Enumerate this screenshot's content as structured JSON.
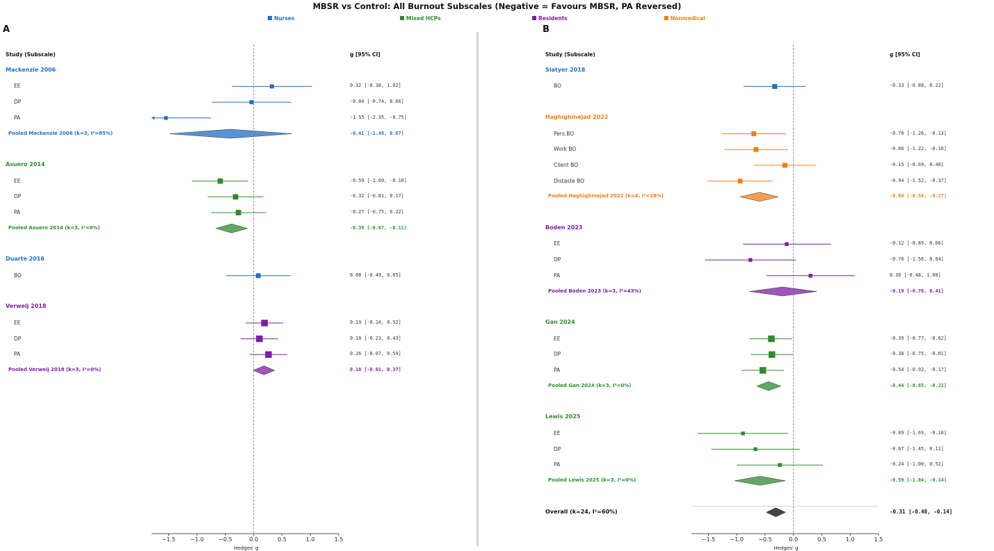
{
  "title": "MBSR vs Control: All Burnout Subscales  (Negative = Favours MBSR, PA Reversed)",
  "legend": [
    {
      "label": "Nurses",
      "color": "#1f6fc5"
    },
    {
      "label": "Mixed HCPs",
      "color": "#2e8b2e"
    },
    {
      "label": "Residents",
      "color": "#7a1fa2"
    },
    {
      "label": "Nonmedical",
      "color": "#f07f12"
    }
  ],
  "column_headers": {
    "study": "Study (Subscale)",
    "effect": "g [95% CI]"
  },
  "x_axis": {
    "label": "Hedges' g",
    "ticks": [
      -1.5,
      -1.0,
      -0.5,
      0.0,
      0.5,
      1.0,
      1.5
    ],
    "tick_labels": [
      "−1.5",
      "−1.0",
      "−0.5",
      "0.0",
      "0.5",
      "1.0",
      "1.5"
    ],
    "xlim": [
      -1.8,
      1.5
    ]
  },
  "chart_data": [
    {
      "type": "forest",
      "panel": "A",
      "studies": [
        {
          "name": "Mackenzie 2006",
          "group": "Nurses",
          "color": "#1f6fc5",
          "rows": [
            {
              "label": "EE",
              "g": 0.32,
              "lo": -0.38,
              "hi": 1.02,
              "ci_text": "0.32 [-0.38, 1.02]"
            },
            {
              "label": "DP",
              "g": -0.04,
              "lo": -0.74,
              "hi": 0.66,
              "ci_text": "-0.04 [-0.74, 0.66]"
            },
            {
              "label": "PA",
              "g": -1.55,
              "lo": -2.35,
              "hi": -0.75,
              "ci_text": "-1.55 [-2.35, -0.75]"
            }
          ],
          "pooled": {
            "label": "Pooled Mackenzie 2006 (k=3, I²=85%)",
            "g": -0.41,
            "lo": -1.48,
            "hi": 0.67,
            "ci_text": "-0.41 [-1.48, 0.67]"
          }
        },
        {
          "name": "Asuero 2014",
          "group": "Mixed HCPs",
          "color": "#2e8b2e",
          "rows": [
            {
              "label": "EE",
              "g": -0.59,
              "lo": -1.09,
              "hi": -0.1,
              "ci_text": "-0.59 [-1.09, -0.10]"
            },
            {
              "label": "DP",
              "g": -0.32,
              "lo": -0.81,
              "hi": 0.17,
              "ci_text": "-0.32 [-0.81, 0.17]"
            },
            {
              "label": "PA",
              "g": -0.27,
              "lo": -0.75,
              "hi": 0.22,
              "ci_text": "-0.27 [-0.75, 0.22]"
            }
          ],
          "pooled": {
            "label": "Pooled Asuero 2014 (k=3, I²=0%)",
            "g": -0.39,
            "lo": -0.67,
            "hi": -0.11,
            "ci_text": "-0.39 [-0.67, -0.11]"
          }
        },
        {
          "name": "Duarte 2016",
          "group": "Nurses",
          "color": "#1f6fc5",
          "rows": [
            {
              "label": "BO",
              "g": 0.08,
              "lo": -0.49,
              "hi": 0.65,
              "ci_text": "0.08 [-0.49, 0.65]"
            }
          ]
        },
        {
          "name": "Verweij 2018",
          "group": "Residents",
          "color": "#7a1fa2",
          "rows": [
            {
              "label": "EE",
              "g": 0.19,
              "lo": -0.14,
              "hi": 0.52,
              "ci_text": "0.19 [-0.14, 0.52]"
            },
            {
              "label": "DP",
              "g": 0.1,
              "lo": -0.23,
              "hi": 0.43,
              "ci_text": "0.10 [-0.23, 0.43]"
            },
            {
              "label": "PA",
              "g": 0.26,
              "lo": -0.07,
              "hi": 0.59,
              "ci_text": "0.26 [-0.07, 0.59]"
            }
          ],
          "pooled": {
            "label": "Pooled Verweij 2018 (k=3, I²=0%)",
            "g": 0.18,
            "lo": -0.01,
            "hi": 0.37,
            "ci_text": "0.18 [-0.01, 0.37]"
          }
        }
      ]
    },
    {
      "type": "forest",
      "panel": "B",
      "studies": [
        {
          "name": "Slatyer 2018",
          "group": "Nurses",
          "color": "#1f6fc5",
          "rows": [
            {
              "label": "BO",
              "g": -0.33,
              "lo": -0.88,
              "hi": 0.22,
              "ci_text": "-0.33 [-0.88, 0.22]"
            }
          ]
        },
        {
          "name": "Haghighinejad 2022",
          "group": "Nonmedical",
          "color": "#f07f12",
          "rows": [
            {
              "label": "Pers.BO",
              "g": -0.7,
              "lo": -1.26,
              "hi": -0.13,
              "ci_text": "-0.70 [-1.26, -0.13]"
            },
            {
              "label": "Work BO",
              "g": -0.66,
              "lo": -1.22,
              "hi": -0.1,
              "ci_text": "-0.66 [-1.22, -0.10]"
            },
            {
              "label": "Client BO",
              "g": -0.15,
              "lo": -0.69,
              "hi": 0.4,
              "ci_text": "-0.15 [-0.69, 0.40]"
            },
            {
              "label": "Distaste BO",
              "g": -0.94,
              "lo": -1.52,
              "hi": -0.37,
              "ci_text": "-0.94 [-1.52, -0.37]"
            }
          ],
          "pooled": {
            "label": "Pooled Haghighinejad 2022 (k=4, I²=28%)",
            "g": -0.6,
            "lo": -0.94,
            "hi": -0.27,
            "ci_text": "-0.60 [-0.94, -0.27]"
          }
        },
        {
          "name": "Boden 2023",
          "group": "Residents",
          "color": "#7a1fa2",
          "rows": [
            {
              "label": "EE",
              "g": -0.12,
              "lo": -0.89,
              "hi": 0.66,
              "ci_text": "-0.12 [-0.89, 0.66]"
            },
            {
              "label": "DP",
              "g": -0.76,
              "lo": -1.56,
              "hi": 0.04,
              "ci_text": "-0.76 [-1.56, 0.04]"
            },
            {
              "label": "PA",
              "g": 0.3,
              "lo": -0.48,
              "hi": 1.08,
              "ci_text": "0.30 [-0.48, 1.08]"
            }
          ],
          "pooled": {
            "label": "Pooled Boden 2023 (k=3, I²=43%)",
            "g": -0.19,
            "lo": -0.78,
            "hi": 0.41,
            "ci_text": "-0.19 [-0.78, 0.41]"
          }
        },
        {
          "name": "Gan 2024",
          "group": "Mixed HCPs",
          "color": "#2e8b2e",
          "rows": [
            {
              "label": "EE",
              "g": -0.39,
              "lo": -0.77,
              "hi": -0.02,
              "ci_text": "-0.39 [-0.77, -0.02]"
            },
            {
              "label": "DP",
              "g": -0.38,
              "lo": -0.75,
              "hi": -0.01,
              "ci_text": "-0.38 [-0.75, -0.01]"
            },
            {
              "label": "PA",
              "g": -0.54,
              "lo": -0.92,
              "hi": -0.17,
              "ci_text": "-0.54 [-0.92, -0.17]"
            }
          ],
          "pooled": {
            "label": "Pooled Gan 2024 (k=3, I²=0%)",
            "g": -0.44,
            "lo": -0.65,
            "hi": -0.22,
            "ci_text": "-0.44 [-0.65, -0.22]"
          }
        },
        {
          "name": "Lewis 2025",
          "group": "Mixed HCPs",
          "color": "#2e8b2e",
          "rows": [
            {
              "label": "EE",
              "g": -0.89,
              "lo": -1.69,
              "hi": -0.1,
              "ci_text": "-0.89 [-1.69, -0.10]"
            },
            {
              "label": "DP",
              "g": -0.67,
              "lo": -1.45,
              "hi": 0.11,
              "ci_text": "-0.67 [-1.45, 0.11]"
            },
            {
              "label": "PA",
              "g": -0.24,
              "lo": -1.0,
              "hi": 0.52,
              "ci_text": "-0.24 [-1.00, 0.52]"
            }
          ],
          "pooled": {
            "label": "Pooled Lewis 2025 (k=3, I²=0%)",
            "g": -0.59,
            "lo": -1.04,
            "hi": -0.14,
            "ci_text": "-0.59 [-1.04, -0.14]"
          }
        }
      ],
      "overall": {
        "label": "Overall (k=24, I²=60%)",
        "g": -0.31,
        "lo": -0.48,
        "hi": -0.14,
        "ci_text": "-0.31 [-0.48, -0.14]",
        "color": "#444444"
      }
    }
  ]
}
